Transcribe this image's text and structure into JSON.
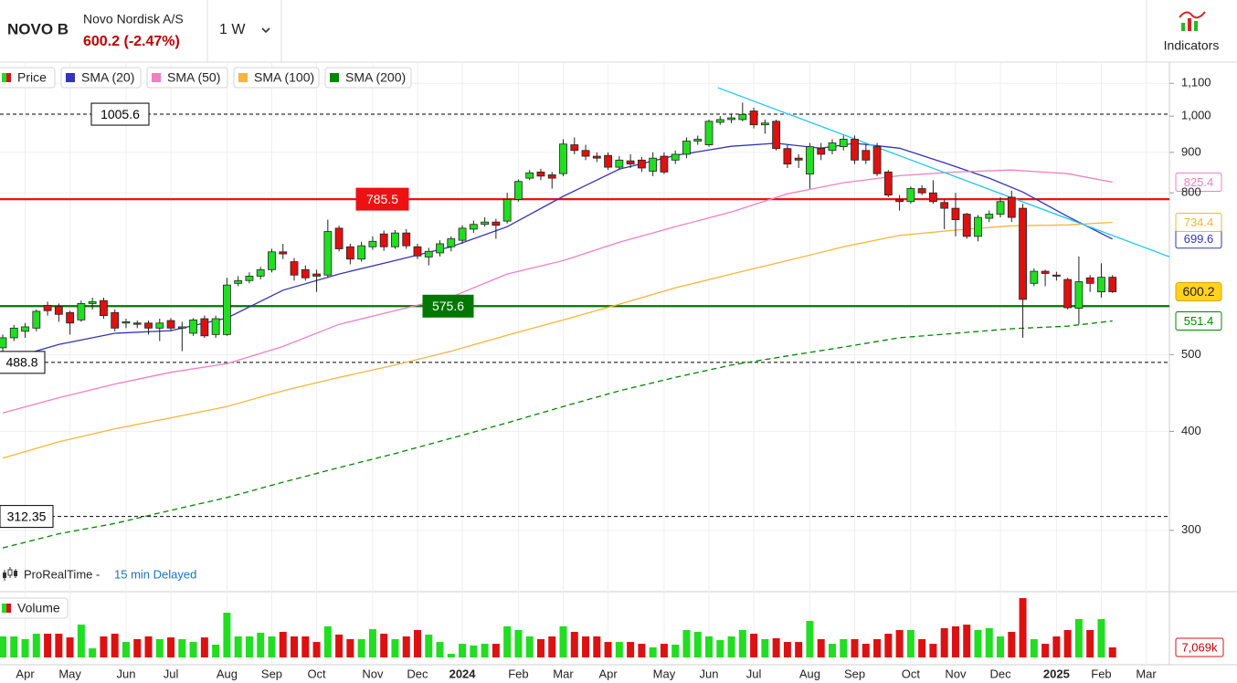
{
  "chart_data": {
    "type": "candlestick",
    "title": "NOVO B",
    "subtitle": "Novo Nordisk A/S",
    "price_change": "600.2 (-2.47%)",
    "interval": "1 W",
    "indicators_button": "Indicators",
    "source": "ProRealTime -",
    "delay": "15 min Delayed",
    "price_name": "Price",
    "up_color": "#22dd22",
    "down_color": "#dd1111",
    "log_y": true,
    "grid": true,
    "ylim": [
      251,
      1170
    ],
    "yticks": [
      300,
      400,
      500,
      800,
      900,
      {
        "value": 1000,
        "label": "1,000"
      },
      {
        "value": 1100,
        "label": "1,100"
      }
    ],
    "categories": [
      null,
      null,
      "Apr",
      null,
      null,
      null,
      "May",
      null,
      null,
      null,
      null,
      "Jun",
      null,
      null,
      null,
      "Jul",
      null,
      null,
      null,
      null,
      "Aug",
      null,
      null,
      null,
      "Sep",
      null,
      null,
      null,
      "Oct",
      null,
      null,
      null,
      null,
      "Nov",
      null,
      null,
      null,
      "Dec",
      null,
      null,
      null,
      "2024",
      null,
      null,
      null,
      null,
      "Feb",
      null,
      null,
      null,
      "Mar",
      null,
      null,
      null,
      "Apr",
      null,
      null,
      null,
      null,
      "May",
      null,
      null,
      null,
      "Jun",
      null,
      null,
      null,
      "Jul",
      null,
      null,
      null,
      null,
      "Aug",
      null,
      null,
      null,
      "Sep",
      null,
      null,
      null,
      null,
      "Oct",
      null,
      null,
      null,
      "Nov",
      null,
      null,
      null,
      "Dec",
      null,
      null,
      null,
      null,
      "2025",
      null,
      null,
      null,
      "Feb",
      null,
      null,
      null,
      "Mar"
    ],
    "open": [
      510,
      525,
      535,
      540,
      577,
      575,
      565,
      553,
      580,
      585,
      565,
      548,
      548,
      548,
      540,
      552,
      540,
      532,
      555,
      530,
      530,
      615,
      620,
      628,
      640,
      674,
      655,
      640,
      632,
      630,
      722,
      684,
      660,
      684,
      710,
      684,
      712,
      684,
      664,
      672,
      684,
      697,
      720,
      730,
      735,
      737,
      785,
      835,
      850,
      843,
      846,
      920,
      905,
      890,
      892,
      862,
      878,
      880,
      852,
      890,
      880,
      895,
      930,
      920,
      982,
      990,
      990,
      1015,
      975,
      985,
      910,
      885,
      845,
      910,
      905,
      915,
      935,
      905,
      915,
      850,
      785,
      780,
      810,
      800,
      778,
      765,
      752,
      705,
      743,
      752,
      790,
      765,
      615,
      637,
      630,
      622,
      572,
      625,
      600,
      626,
      null,
      null,
      null
    ],
    "high": [
      530,
      545,
      548,
      570,
      583,
      580,
      568,
      585,
      590,
      590,
      570,
      555,
      552,
      552,
      555,
      556,
      550,
      556,
      560,
      560,
      625,
      628,
      635,
      645,
      680,
      690,
      662,
      648,
      640,
      740,
      727,
      690,
      694,
      705,
      717,
      718,
      720,
      690,
      682,
      697,
      705,
      728,
      738,
      745,
      742,
      800,
      832,
      855,
      858,
      850,
      935,
      940,
      920,
      900,
      900,
      890,
      895,
      888,
      900,
      900,
      905,
      940,
      945,
      990,
      1000,
      1005,
      1040,
      1025,
      990,
      990,
      920,
      895,
      925,
      925,
      935,
      945,
      945,
      920,
      925,
      855,
      795,
      815,
      818,
      830,
      785,
      800,
      755,
      750,
      760,
      790,
      805,
      775,
      642,
      640,
      636,
      625,
      665,
      630,
      652,
      630,
      null,
      null,
      null
    ],
    "low": [
      505,
      520,
      525,
      535,
      560,
      550,
      530,
      550,
      570,
      555,
      535,
      540,
      540,
      530,
      520,
      535,
      505,
      528,
      525,
      525,
      528,
      610,
      615,
      622,
      635,
      660,
      620,
      620,
      600,
      625,
      675,
      650,
      655,
      678,
      676,
      680,
      680,
      660,
      648,
      665,
      675,
      690,
      712,
      725,
      700,
      732,
      780,
      830,
      830,
      810,
      840,
      895,
      880,
      875,
      855,
      855,
      860,
      850,
      840,
      845,
      870,
      885,
      920,
      915,
      975,
      980,
      985,
      965,
      950,
      905,
      860,
      860,
      810,
      880,
      895,
      905,
      870,
      870,
      840,
      790,
      760,
      775,
      795,
      775,
      720,
      705,
      700,
      695,
      735,
      745,
      735,
      525,
      610,
      610,
      620,
      570,
      546,
      600,
      590,
      598,
      null,
      null,
      null
    ],
    "close": [
      525,
      540,
      542,
      567,
      568,
      562,
      548,
      580,
      583,
      560,
      540,
      550,
      546,
      540,
      548,
      540,
      542,
      553,
      528,
      555,
      612,
      620,
      628,
      640,
      674,
      670,
      630,
      625,
      628,
      715,
      680,
      660,
      686,
      695,
      684,
      712,
      686,
      666,
      675,
      690,
      700,
      722,
      730,
      735,
      728,
      785,
      827,
      848,
      840,
      835,
      922,
      905,
      890,
      885,
      862,
      880,
      870,
      860,
      885,
      850,
      895,
      930,
      935,
      985,
      990,
      995,
      1005,
      975,
      980,
      910,
      870,
      880,
      915,
      895,
      925,
      935,
      880,
      880,
      846,
      795,
      780,
      810,
      800,
      780,
      765,
      740,
      705,
      745,
      752,
      780,
      745,
      587,
      637,
      633,
      628,
      573,
      618,
      615,
      626,
      600.2,
      null,
      null,
      null
    ],
    "volume": {
      "name": "Volume",
      "ylim": [
        0,
        46300
      ],
      "last_value_label": "7,069k",
      "values": [
        14800,
        14800,
        12900,
        16700,
        16700,
        16700,
        14100,
        23100,
        6400,
        14800,
        16700,
        10900,
        12900,
        14800,
        12900,
        14100,
        12900,
        10900,
        14100,
        9000,
        31500,
        14800,
        14800,
        17400,
        14800,
        18000,
        14800,
        14800,
        10900,
        21900,
        16100,
        12900,
        12900,
        19900,
        16700,
        12900,
        14800,
        19300,
        16100,
        10900,
        2600,
        9600,
        8400,
        9600,
        9600,
        21900,
        19300,
        14800,
        12900,
        14800,
        21900,
        18000,
        14800,
        14800,
        10900,
        10900,
        10900,
        9600,
        7100,
        9600,
        9000,
        19300,
        18000,
        14800,
        12200,
        14800,
        19300,
        16700,
        12900,
        13500,
        10900,
        10900,
        25700,
        12900,
        9600,
        12900,
        12900,
        9600,
        12900,
        16700,
        19300,
        19300,
        12900,
        9600,
        20600,
        21900,
        23100,
        19300,
        20600,
        14800,
        18000,
        41800,
        12900,
        9600,
        14800,
        19300,
        27000,
        19300,
        27000,
        7069,
        null,
        null,
        null
      ]
    },
    "series": [
      {
        "name": "SMA (20)",
        "color": "#3333bb",
        "x": [
          0,
          5,
          10,
          15,
          20,
          25,
          30,
          35,
          40,
          45,
          50,
          55,
          60,
          65,
          69,
          73,
          76,
          80,
          84,
          88,
          91,
          95,
          99
        ],
        "values": [
          491,
          515,
          532,
          536,
          556,
          603,
          632,
          657,
          684,
          725,
          792,
          857,
          892,
          916,
          924,
          911,
          924,
          911,
          873,
          835,
          802,
          747,
          699.6
        ]
      },
      {
        "name": "SMA (50)",
        "color": "#f47fbf",
        "x": [
          0,
          5,
          10,
          15,
          20,
          25,
          30,
          35,
          40,
          45,
          50,
          55,
          60,
          65,
          70,
          75,
          80,
          85,
          90,
          95,
          99
        ],
        "values": [
          422,
          441,
          459,
          475,
          487,
          512,
          546,
          568,
          591,
          632,
          657,
          693,
          725,
          757,
          798,
          824,
          841,
          850,
          855,
          846,
          825.4
        ]
      },
      {
        "name": "SMA (100)",
        "color": "#f7b53b",
        "x": [
          0,
          5,
          10,
          15,
          20,
          25,
          30,
          35,
          40,
          45,
          50,
          55,
          60,
          65,
          70,
          75,
          80,
          85,
          90,
          95,
          99
        ],
        "values": [
          370,
          388,
          403,
          416,
          430,
          450,
          468,
          485,
          505,
          529,
          553,
          579,
          607,
          632,
          657,
          684,
          707,
          718,
          727,
          729,
          734.4
        ]
      },
      {
        "name": "SMA (200)",
        "color": "#008800",
        "dashed": true,
        "x": [
          0,
          5,
          10,
          15,
          20,
          25,
          30,
          35,
          40,
          45,
          50,
          55,
          60,
          65,
          70,
          75,
          80,
          85,
          90,
          95,
          99
        ],
        "values": [
          285,
          297,
          306,
          318,
          330,
          345,
          360,
          375,
          392,
          410,
          430,
          450,
          468,
          485,
          498,
          511,
          525,
          532,
          539,
          543,
          551.4
        ]
      }
    ],
    "trendline": {
      "color": "#1ec8f0",
      "x": [
        63.8,
        104.5
      ],
      "values": [
        1086,
        661
      ]
    },
    "levels": [
      {
        "value": 1005.6,
        "color": "#000000",
        "style": "dashed"
      },
      {
        "value": 785.5,
        "color": "#ee1111",
        "style": "solid"
      },
      {
        "value": 575.6,
        "color": "#007700",
        "style": "solid"
      },
      {
        "value": 488.8,
        "color": "#000000",
        "style": "dashed"
      },
      {
        "value": 312.35,
        "color": "#000000",
        "style": "dashed"
      }
    ]
  }
}
